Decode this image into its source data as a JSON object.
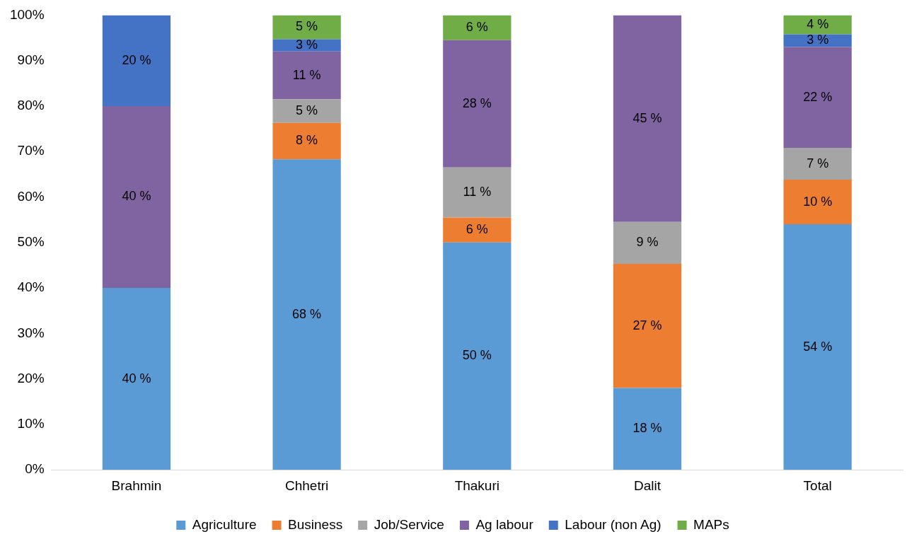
{
  "chart_data": {
    "type": "bar",
    "stacked": true,
    "categories": [
      "Brahmin",
      "Chhetri",
      "Thakuri",
      "Dalit",
      "Total"
    ],
    "ylim": [
      0,
      100
    ],
    "yticks": [
      {
        "value": 0,
        "label": "0%"
      },
      {
        "value": 10,
        "label": "10%"
      },
      {
        "value": 20,
        "label": "20%"
      },
      {
        "value": 30,
        "label": "30%"
      },
      {
        "value": 40,
        "label": "40%"
      },
      {
        "value": 50,
        "label": "50%"
      },
      {
        "value": 60,
        "label": "60%"
      },
      {
        "value": 70,
        "label": "70%"
      },
      {
        "value": 80,
        "label": "80%"
      },
      {
        "value": 90,
        "label": "90%"
      },
      {
        "value": 100,
        "label": "100%"
      }
    ],
    "grid": false,
    "legend": "bottom",
    "series": [
      {
        "name": "Agriculture",
        "color": "#5b9bd5",
        "values": [
          40,
          68.3,
          50,
          18,
          54
        ],
        "value_labels": [
          "40 %",
          "68 %",
          "50 %",
          "18 %",
          "54 %"
        ]
      },
      {
        "name": "Business",
        "color": "#ed7d31",
        "values": [
          null,
          8,
          5.5,
          27.3,
          9.8
        ],
        "value_labels": [
          null,
          "8 %",
          "6 %",
          "27 %",
          "10 %"
        ]
      },
      {
        "name": "Job/Service",
        "color": "#a5a5a5",
        "values": [
          null,
          5.2,
          11,
          9.2,
          7
        ],
        "value_labels": [
          null,
          "5 %",
          "11 %",
          "9 %",
          "7 %"
        ]
      },
      {
        "name": "Ag labour",
        "color": "#8064a2",
        "values": [
          40,
          10.5,
          28,
          45.5,
          22.2
        ],
        "value_labels": [
          "40 %",
          "11 %",
          "28 %",
          "45 %",
          "22 %"
        ]
      },
      {
        "name": "Labour (non Ag)",
        "color": "#4472c4",
        "values": [
          20,
          2.7,
          null,
          null,
          2.8
        ],
        "value_labels": [
          "20 %",
          "3 %",
          null,
          null,
          "3 %"
        ]
      },
      {
        "name": "MAPs",
        "color": "#70ad47",
        "values": [
          null,
          5.3,
          5.5,
          null,
          4.2
        ],
        "value_labels": [
          null,
          "5 %",
          "6 %",
          null,
          "4 %"
        ]
      }
    ]
  }
}
